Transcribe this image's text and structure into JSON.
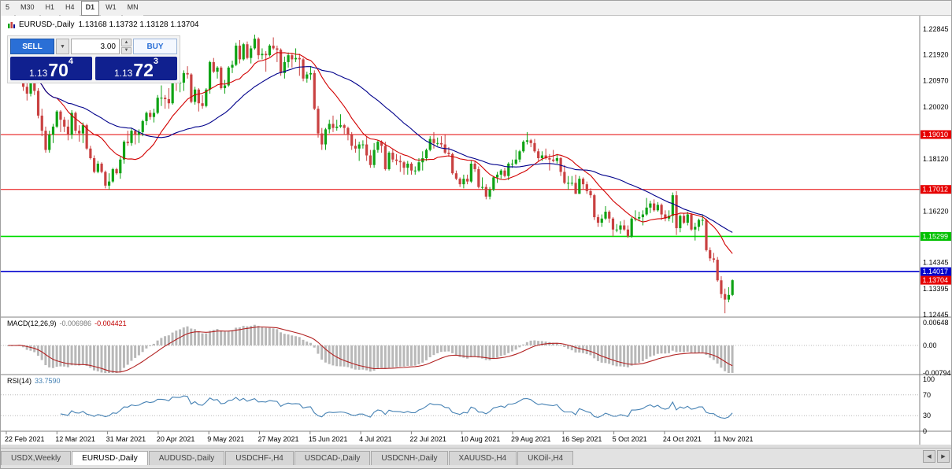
{
  "toolbar": {
    "timeframes": [
      {
        "label": "5",
        "active": false
      },
      {
        "label": "M30",
        "active": false
      },
      {
        "label": "H1",
        "active": false
      },
      {
        "label": "H4",
        "active": false
      },
      {
        "label": "D1",
        "active": true
      },
      {
        "label": "W1",
        "active": false
      },
      {
        "label": "MN",
        "active": false
      }
    ]
  },
  "chart": {
    "symbol_title": "EURUSD-,Daily",
    "ohlc_text": "1.13168 1.13732 1.13128 1.13704"
  },
  "trade_panel": {
    "sell_label": "SELL",
    "buy_label": "BUY",
    "volume": "3.00",
    "sell_price": {
      "prefix": "1.13",
      "big": "70",
      "sup": "4"
    },
    "buy_price": {
      "prefix": "1.13",
      "big": "72",
      "sup": "3"
    }
  },
  "icons": {
    "dropdown": "▼",
    "spin_up": "▲",
    "spin_down": "▼",
    "tab_scroll_left": "◀",
    "tab_scroll_right": "▶"
  },
  "colors": {
    "bull": "#0fa315",
    "bear": "#c94141",
    "ma_fast": "#d20000",
    "ma_slow": "#00008b",
    "macd_hist": "#b8b8b8",
    "macd_signal": "#b22222",
    "rsi_line": "#4682b4",
    "axis_text": "#000000",
    "separator": "#808080",
    "dotted": "#b8b8b8"
  },
  "chart_data": {
    "type": "candlestick",
    "symbol": "EURUSD-,Daily",
    "ylim": {
      "top": 1.2308,
      "bottom": 1.1236
    },
    "y_ticks": [
      {
        "label": "1.22845",
        "value": 1.22845
      },
      {
        "label": "1.21920",
        "value": 1.2192
      },
      {
        "label": "1.20970",
        "value": 1.2097
      },
      {
        "label": "1.20020",
        "value": 1.2002
      },
      {
        "label": "1.18120",
        "value": 1.1812
      },
      {
        "label": "1.16220",
        "value": 1.1622
      },
      {
        "label": "1.14345",
        "value": 1.14345
      },
      {
        "label": "1.13395",
        "value": 1.13395
      },
      {
        "label": "1.12445",
        "value": 1.12445
      }
    ],
    "hlines": [
      {
        "label": "1.19010",
        "value": 1.1901,
        "color": "#e60000",
        "width": 1
      },
      {
        "label": "1.17012",
        "value": 1.17012,
        "color": "#e60000",
        "width": 1
      },
      {
        "label": "1.15299",
        "value": 1.15299,
        "color": "#00dd00",
        "width": 1.6
      },
      {
        "label": "1.14017",
        "value": 1.14017,
        "color": "#0000cd",
        "width": 1.6
      }
    ],
    "current_price": {
      "label": "1.13704",
      "value": 1.13704,
      "color": "#e60000"
    },
    "x_labels": [
      "22 Feb 2021",
      "12 Mar 2021",
      "31 Mar 2021",
      "20 Apr 2021",
      "9 May 2021",
      "27 May 2021",
      "15 Jun 2021",
      "4 Jul 2021",
      "22 Jul 2021",
      "10 Aug 2021",
      "29 Aug 2021",
      "16 Sep 2021",
      "5 Oct 2021",
      "24 Oct 2021",
      "11 Nov 2021"
    ],
    "moving_averages": [
      {
        "name": "sma-fast",
        "period": 14,
        "color_key": "ma_fast"
      },
      {
        "name": "sma-slow",
        "period": 34,
        "color_key": "ma_slow"
      }
    ],
    "macd": {
      "label": "MACD(12,26,9)",
      "value": "-0.006986",
      "signal_value": "-0.004421",
      "fast": 12,
      "slow": 26,
      "signal": 9,
      "scale_max": 0.00648,
      "axis": [
        {
          "label": "0.00648",
          "value": 0.00648
        },
        {
          "label": "0.00",
          "value": 0
        },
        {
          "label": "-0.00794",
          "value": -0.00794
        }
      ]
    },
    "rsi": {
      "label": "RSI(14)",
      "value": "33.7590",
      "period": 14,
      "axis": [
        {
          "label": "100",
          "value": 100
        },
        {
          "label": "70",
          "value": 70
        },
        {
          "label": "30",
          "value": 30
        },
        {
          "label": "0",
          "value": 0
        }
      ],
      "levels": [
        70,
        30
      ]
    },
    "candles": [
      [
        1.2115,
        1.2165,
        1.209,
        1.2157
      ],
      [
        1.2157,
        1.218,
        1.2135,
        1.215
      ],
      [
        1.215,
        1.2175,
        1.211,
        1.217
      ],
      [
        1.217,
        1.2243,
        1.2155,
        1.2175
      ],
      [
        1.2175,
        1.2184,
        1.206,
        1.2075
      ],
      [
        1.2075,
        1.2095,
        1.2025,
        1.205
      ],
      [
        1.205,
        1.2095,
        1.204,
        1.209
      ],
      [
        1.209,
        1.2113,
        1.2045,
        1.206
      ],
      [
        1.206,
        1.207,
        1.196,
        1.197
      ],
      [
        1.197,
        1.1995,
        1.1895,
        1.1915
      ],
      [
        1.1915,
        1.193,
        1.1835,
        1.1845
      ],
      [
        1.1845,
        1.1915,
        1.1835,
        1.19
      ],
      [
        1.19,
        1.194,
        1.187,
        1.193
      ],
      [
        1.193,
        1.199,
        1.1925,
        1.1985
      ],
      [
        1.1985,
        1.199,
        1.191,
        1.1955
      ],
      [
        1.1955,
        1.1965,
        1.191,
        1.193
      ],
      [
        1.193,
        1.1955,
        1.188,
        1.19
      ],
      [
        1.19,
        1.199,
        1.1885,
        1.198
      ],
      [
        1.198,
        1.1985,
        1.1905,
        1.1915
      ],
      [
        1.1915,
        1.1935,
        1.1875,
        1.1905
      ],
      [
        1.1905,
        1.1945,
        1.187,
        1.1935
      ],
      [
        1.1935,
        1.194,
        1.1845,
        1.185
      ],
      [
        1.185,
        1.186,
        1.181,
        1.1815
      ],
      [
        1.1815,
        1.1825,
        1.176,
        1.1765
      ],
      [
        1.1765,
        1.1805,
        1.176,
        1.1795
      ],
      [
        1.1795,
        1.18,
        1.176,
        1.1765
      ],
      [
        1.1765,
        1.177,
        1.1705,
        1.1715
      ],
      [
        1.1715,
        1.176,
        1.17,
        1.173
      ],
      [
        1.173,
        1.178,
        1.1725,
        1.1775
      ],
      [
        1.1775,
        1.178,
        1.1755,
        1.176
      ],
      [
        1.176,
        1.182,
        1.174,
        1.181
      ],
      [
        1.181,
        1.188,
        1.1795,
        1.1875
      ],
      [
        1.1875,
        1.1915,
        1.186,
        1.187
      ],
      [
        1.187,
        1.1925,
        1.186,
        1.1915
      ],
      [
        1.1915,
        1.192,
        1.1865,
        1.19
      ],
      [
        1.19,
        1.192,
        1.187,
        1.191
      ],
      [
        1.191,
        1.1955,
        1.1895,
        1.195
      ],
      [
        1.195,
        1.1985,
        1.1935,
        1.198
      ],
      [
        1.198,
        1.199,
        1.1955,
        1.1965
      ],
      [
        1.1965,
        1.1995,
        1.1945,
        1.198
      ],
      [
        1.198,
        1.2045,
        1.1975,
        1.2035
      ],
      [
        1.2035,
        1.208,
        1.2005,
        1.2035
      ],
      [
        1.2035,
        1.2045,
        1.1995,
        1.203
      ],
      [
        1.203,
        1.207,
        1.1995,
        1.2015
      ],
      [
        1.2015,
        1.21,
        1.201,
        1.2095
      ],
      [
        1.2095,
        1.2115,
        1.206,
        1.209
      ],
      [
        1.209,
        1.2095,
        1.2055,
        1.209
      ],
      [
        1.209,
        1.2135,
        1.206,
        1.2125
      ],
      [
        1.2125,
        1.215,
        1.2105,
        1.212
      ],
      [
        1.212,
        1.2125,
        1.2015,
        1.202
      ],
      [
        1.202,
        1.2075,
        1.201,
        1.2065
      ],
      [
        1.2065,
        1.207,
        1.1985,
        1.2015
      ],
      [
        1.2015,
        1.2045,
        1.1995,
        1.2005
      ],
      [
        1.2005,
        1.207,
        1.2,
        1.2065
      ],
      [
        1.2065,
        1.217,
        1.205,
        1.2165
      ],
      [
        1.2165,
        1.218,
        1.2125,
        1.213
      ],
      [
        1.213,
        1.215,
        1.2105,
        1.2145
      ],
      [
        1.2145,
        1.215,
        1.2065,
        1.207
      ],
      [
        1.207,
        1.21,
        1.205,
        1.208
      ],
      [
        1.208,
        1.215,
        1.2075,
        1.2145
      ],
      [
        1.2145,
        1.217,
        1.2125,
        1.2155
      ],
      [
        1.2155,
        1.2235,
        1.215,
        1.2225
      ],
      [
        1.2225,
        1.2245,
        1.216,
        1.2175
      ],
      [
        1.2175,
        1.2235,
        1.217,
        1.223
      ],
      [
        1.223,
        1.224,
        1.2175,
        1.218
      ],
      [
        1.218,
        1.2225,
        1.216,
        1.2215
      ],
      [
        1.2215,
        1.2265,
        1.221,
        1.225
      ],
      [
        1.225,
        1.2255,
        1.2175,
        1.219
      ],
      [
        1.219,
        1.2215,
        1.2175,
        1.2195
      ],
      [
        1.2195,
        1.2205,
        1.213,
        1.219
      ],
      [
        1.219,
        1.223,
        1.2185,
        1.2225
      ],
      [
        1.2225,
        1.2255,
        1.221,
        1.2215
      ],
      [
        1.2215,
        1.2225,
        1.2165,
        1.221
      ],
      [
        1.221,
        1.2215,
        1.2115,
        1.2125
      ],
      [
        1.2125,
        1.2185,
        1.2105,
        1.2165
      ],
      [
        1.2165,
        1.22,
        1.2145,
        1.219
      ],
      [
        1.219,
        1.2195,
        1.2145,
        1.2175
      ],
      [
        1.2175,
        1.2215,
        1.2165,
        1.218
      ],
      [
        1.218,
        1.2195,
        1.2115,
        1.2175
      ],
      [
        1.2175,
        1.218,
        1.2095,
        1.2105
      ],
      [
        1.2105,
        1.213,
        1.209,
        1.212
      ],
      [
        1.212,
        1.215,
        1.21,
        1.2125
      ],
      [
        1.2125,
        1.2135,
        1.199,
        1.1995
      ],
      [
        1.1995,
        1.2005,
        1.189,
        1.1905
      ],
      [
        1.1905,
        1.1925,
        1.1845,
        1.1865
      ],
      [
        1.1865,
        1.1925,
        1.1845,
        1.192
      ],
      [
        1.192,
        1.1955,
        1.1905,
        1.194
      ],
      [
        1.194,
        1.197,
        1.191,
        1.1925
      ],
      [
        1.1925,
        1.1955,
        1.1915,
        1.193
      ],
      [
        1.193,
        1.1975,
        1.1925,
        1.1935
      ],
      [
        1.1935,
        1.194,
        1.19,
        1.1925
      ],
      [
        1.1925,
        1.193,
        1.188,
        1.19
      ],
      [
        1.19,
        1.191,
        1.1845,
        1.186
      ],
      [
        1.186,
        1.1885,
        1.1835,
        1.185
      ],
      [
        1.185,
        1.1875,
        1.1805,
        1.1865
      ],
      [
        1.1865,
        1.188,
        1.185,
        1.1865
      ],
      [
        1.1865,
        1.1895,
        1.1805,
        1.1825
      ],
      [
        1.1825,
        1.1845,
        1.178,
        1.179
      ],
      [
        1.179,
        1.187,
        1.178,
        1.1845
      ],
      [
        1.1845,
        1.188,
        1.1835,
        1.1875
      ],
      [
        1.1875,
        1.188,
        1.1835,
        1.186
      ],
      [
        1.186,
        1.1875,
        1.177,
        1.1775
      ],
      [
        1.1775,
        1.184,
        1.177,
        1.1835
      ],
      [
        1.1835,
        1.185,
        1.18,
        1.181
      ],
      [
        1.181,
        1.183,
        1.179,
        1.1805
      ],
      [
        1.1805,
        1.1825,
        1.1765,
        1.18
      ],
      [
        1.18,
        1.1805,
        1.1755,
        1.178
      ],
      [
        1.178,
        1.1805,
        1.1755,
        1.1795
      ],
      [
        1.1795,
        1.18,
        1.1755,
        1.177
      ],
      [
        1.177,
        1.1785,
        1.1755,
        1.177
      ],
      [
        1.177,
        1.1815,
        1.1765,
        1.18
      ],
      [
        1.18,
        1.184,
        1.177,
        1.1815
      ],
      [
        1.1815,
        1.185,
        1.1805,
        1.1845
      ],
      [
        1.1845,
        1.1895,
        1.184,
        1.1885
      ],
      [
        1.1885,
        1.191,
        1.185,
        1.187
      ],
      [
        1.187,
        1.189,
        1.186,
        1.187
      ],
      [
        1.187,
        1.1895,
        1.1855,
        1.1865
      ],
      [
        1.1865,
        1.19,
        1.183,
        1.1835
      ],
      [
        1.1835,
        1.1855,
        1.182,
        1.183
      ],
      [
        1.183,
        1.1835,
        1.1755,
        1.176
      ],
      [
        1.176,
        1.177,
        1.1735,
        1.174
      ],
      [
        1.174,
        1.1745,
        1.171,
        1.172
      ],
      [
        1.172,
        1.1755,
        1.1705,
        1.174
      ],
      [
        1.174,
        1.1755,
        1.172,
        1.173
      ],
      [
        1.173,
        1.1805,
        1.1725,
        1.1795
      ],
      [
        1.1795,
        1.1805,
        1.1765,
        1.1775
      ],
      [
        1.1775,
        1.1785,
        1.1705,
        1.171
      ],
      [
        1.171,
        1.1745,
        1.17,
        1.171
      ],
      [
        1.171,
        1.172,
        1.1665,
        1.1675
      ],
      [
        1.1675,
        1.171,
        1.1665,
        1.17
      ],
      [
        1.17,
        1.175,
        1.1695,
        1.1745
      ],
      [
        1.1745,
        1.1765,
        1.1725,
        1.1755
      ],
      [
        1.1755,
        1.1775,
        1.174,
        1.177
      ],
      [
        1.177,
        1.178,
        1.1745,
        1.175
      ],
      [
        1.175,
        1.18,
        1.1735,
        1.1795
      ],
      [
        1.1795,
        1.181,
        1.178,
        1.1795
      ],
      [
        1.1795,
        1.1845,
        1.179,
        1.181
      ],
      [
        1.181,
        1.1845,
        1.18,
        1.184
      ],
      [
        1.184,
        1.188,
        1.1835,
        1.1875
      ],
      [
        1.1875,
        1.191,
        1.1865,
        1.188
      ],
      [
        1.188,
        1.1885,
        1.1855,
        1.187
      ],
      [
        1.187,
        1.1885,
        1.1835,
        1.184
      ],
      [
        1.184,
        1.185,
        1.1805,
        1.1815
      ],
      [
        1.1815,
        1.184,
        1.1805,
        1.1825
      ],
      [
        1.1825,
        1.185,
        1.181,
        1.1815
      ],
      [
        1.1815,
        1.183,
        1.177,
        1.181
      ],
      [
        1.181,
        1.1845,
        1.18,
        1.1805
      ],
      [
        1.1805,
        1.183,
        1.1795,
        1.1815
      ],
      [
        1.1815,
        1.182,
        1.175,
        1.1765
      ],
      [
        1.1765,
        1.179,
        1.172,
        1.1725
      ],
      [
        1.1725,
        1.175,
        1.17,
        1.1725
      ],
      [
        1.1725,
        1.175,
        1.1715,
        1.1725
      ],
      [
        1.1725,
        1.1755,
        1.1685,
        1.1685
      ],
      [
        1.1685,
        1.175,
        1.1685,
        1.174
      ],
      [
        1.174,
        1.1745,
        1.17,
        1.172
      ],
      [
        1.172,
        1.173,
        1.1685,
        1.1695
      ],
      [
        1.1695,
        1.1705,
        1.167,
        1.168
      ],
      [
        1.168,
        1.1685,
        1.159,
        1.16
      ],
      [
        1.16,
        1.161,
        1.1565,
        1.158
      ],
      [
        1.158,
        1.161,
        1.1565,
        1.1595
      ],
      [
        1.1595,
        1.164,
        1.159,
        1.162
      ],
      [
        1.162,
        1.1625,
        1.158,
        1.1595
      ],
      [
        1.1595,
        1.16,
        1.153,
        1.1555
      ],
      [
        1.1555,
        1.1575,
        1.1545,
        1.1555
      ],
      [
        1.1555,
        1.1585,
        1.154,
        1.157
      ],
      [
        1.157,
        1.159,
        1.155,
        1.1555
      ],
      [
        1.1555,
        1.157,
        1.1525,
        1.153
      ],
      [
        1.153,
        1.16,
        1.1525,
        1.1595
      ],
      [
        1.1595,
        1.1625,
        1.1585,
        1.1595
      ],
      [
        1.1595,
        1.162,
        1.1585,
        1.16
      ],
      [
        1.16,
        1.1625,
        1.157,
        1.161
      ],
      [
        1.161,
        1.167,
        1.1605,
        1.1635
      ],
      [
        1.1635,
        1.166,
        1.1615,
        1.165
      ],
      [
        1.165,
        1.1665,
        1.162,
        1.1625
      ],
      [
        1.1625,
        1.1655,
        1.162,
        1.1645
      ],
      [
        1.1645,
        1.165,
        1.159,
        1.161
      ],
      [
        1.161,
        1.1625,
        1.1585,
        1.1595
      ],
      [
        1.1595,
        1.1625,
        1.1585,
        1.1605
      ],
      [
        1.1605,
        1.169,
        1.158,
        1.168
      ],
      [
        1.168,
        1.1695,
        1.1535,
        1.156
      ],
      [
        1.156,
        1.161,
        1.1545,
        1.1605
      ],
      [
        1.1605,
        1.1615,
        1.1575,
        1.158
      ],
      [
        1.158,
        1.162,
        1.157,
        1.161
      ],
      [
        1.161,
        1.1615,
        1.155,
        1.1555
      ],
      [
        1.1555,
        1.158,
        1.1515,
        1.1565
      ],
      [
        1.1565,
        1.1595,
        1.155,
        1.159
      ],
      [
        1.159,
        1.161,
        1.157,
        1.159
      ],
      [
        1.159,
        1.1595,
        1.1475,
        1.148
      ],
      [
        1.148,
        1.149,
        1.144,
        1.145
      ],
      [
        1.145,
        1.147,
        1.1435,
        1.1445
      ],
      [
        1.1445,
        1.1455,
        1.1365,
        1.137
      ],
      [
        1.137,
        1.1385,
        1.1305,
        1.132
      ],
      [
        1.132,
        1.134,
        1.125,
        1.13
      ],
      [
        1.13,
        1.1345,
        1.129,
        1.13168
      ],
      [
        1.13168,
        1.13732,
        1.13128,
        1.13704
      ]
    ]
  },
  "tabs": {
    "items": [
      {
        "label": "USDX,Weekly",
        "active": false
      },
      {
        "label": "EURUSD-,Daily",
        "active": true
      },
      {
        "label": "AUDUSD-,Daily",
        "active": false
      },
      {
        "label": "USDCHF-,H4",
        "active": false
      },
      {
        "label": "USDCAD-,Daily",
        "active": false
      },
      {
        "label": "USDCNH-,Daily",
        "active": false
      },
      {
        "label": "XAUUSD-,H4",
        "active": false
      },
      {
        "label": "UKOil-,H4",
        "active": false
      }
    ]
  }
}
